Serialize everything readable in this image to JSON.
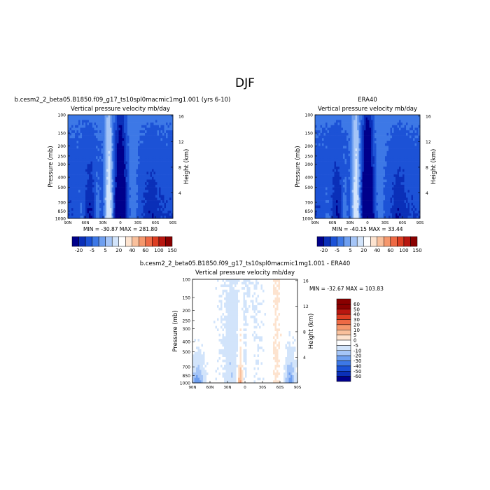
{
  "figure": {
    "title": "DJF"
  },
  "chart_data": [
    {
      "type": "heatmap",
      "title": "b.cesm2_2_beta05.B1850.f09_g17_ts10spl0macmic1mg1.001 (yrs 6-10)",
      "variable": "Vertical pressure velocity",
      "units": "mb/day",
      "xlabel": "",
      "ylabel": "Pressure (mb)",
      "y2label": "Height (km)",
      "x_ticks": [
        "90N",
        "60N",
        "30N",
        "0",
        "30S",
        "60S",
        "90S"
      ],
      "y_ticks": [
        100,
        150,
        200,
        250,
        300,
        400,
        500,
        700,
        850,
        1000
      ],
      "y2_ticks": [
        4,
        8,
        12,
        16
      ],
      "y_scale": "log",
      "min": -30.87,
      "max": 281.8,
      "stats_text": "MIN = -30.87   MAX = 281.80",
      "colorbar_levels": [
        -20,
        -5,
        5,
        20,
        40,
        60,
        100,
        150
      ],
      "colorbar_labels": [
        "-20",
        "-5",
        "5",
        "20",
        "40",
        "60",
        "100",
        "150"
      ],
      "colorbar_placement": "bottom"
    },
    {
      "type": "heatmap",
      "title": "ERA40",
      "variable": "Vertical pressure velocity",
      "units": "mb/day",
      "xlabel": "",
      "ylabel": "Pressure (mb)",
      "y2label": "Height (km)",
      "x_ticks": [
        "90N",
        "60N",
        "30N",
        "0",
        "30S",
        "60S",
        "90S"
      ],
      "y_ticks": [
        100,
        150,
        200,
        250,
        300,
        400,
        500,
        700,
        850,
        1000
      ],
      "y2_ticks": [
        4,
        8,
        12,
        16
      ],
      "y_scale": "log",
      "min": -40.15,
      "max": 33.44,
      "stats_text": "MIN = -40.15   MAX =  33.44",
      "colorbar_levels": [
        -20,
        -5,
        5,
        20,
        40,
        60,
        100,
        150
      ],
      "colorbar_labels": [
        "-20",
        "-5",
        "5",
        "20",
        "40",
        "60",
        "100",
        "150"
      ],
      "colorbar_placement": "bottom"
    },
    {
      "type": "heatmap",
      "title": "b.cesm2_2_beta05.B1850.f09_g17_ts10spl0macmic1mg1.001 - ERA40",
      "variable": "Vertical pressure velocity",
      "units": "mb/day",
      "xlabel": "",
      "ylabel": "Pressure (mb)",
      "y2label": "Height (km)",
      "x_ticks": [
        "90N",
        "60N",
        "30N",
        "0",
        "30S",
        "60S",
        "90S"
      ],
      "y_ticks": [
        100,
        150,
        200,
        250,
        300,
        400,
        500,
        700,
        850,
        1000
      ],
      "y2_ticks": [
        4,
        8,
        12,
        16
      ],
      "y_scale": "log",
      "min": -32.67,
      "max": 103.83,
      "stats_text": "MIN = -32.67   MAX = 103.83",
      "colorbar_levels": [
        60,
        50,
        40,
        30,
        20,
        10,
        5,
        0,
        -5,
        -10,
        -20,
        -30,
        -40,
        -50,
        -60
      ],
      "colorbar_labels": [
        "60",
        "50",
        "40",
        "30",
        "20",
        "10",
        "5",
        "0",
        "-5",
        "-10",
        "-20",
        "-30",
        "-40",
        "-50",
        "-60"
      ],
      "colorbar_placement": "right"
    }
  ],
  "colors": {
    "abs_scale": [
      "#00008b",
      "#0a2fb8",
      "#1c52d6",
      "#3d78e6",
      "#6e9ff0",
      "#a5c5f7",
      "#d2e4fb",
      "#ffffff",
      "#fde3cf",
      "#f9c09c",
      "#f5976c",
      "#ee6a45",
      "#dd3e22",
      "#b8160f",
      "#8a0000"
    ],
    "diff_scale": [
      "#8a0000",
      "#b8160f",
      "#dd3e22",
      "#ee6a45",
      "#f5976c",
      "#f9c09c",
      "#fde3cf",
      "#ffffff",
      "#d2e4fb",
      "#a5c5f7",
      "#6e9ff0",
      "#3d78e6",
      "#1c52d6",
      "#0a2fb8",
      "#00008b"
    ]
  }
}
